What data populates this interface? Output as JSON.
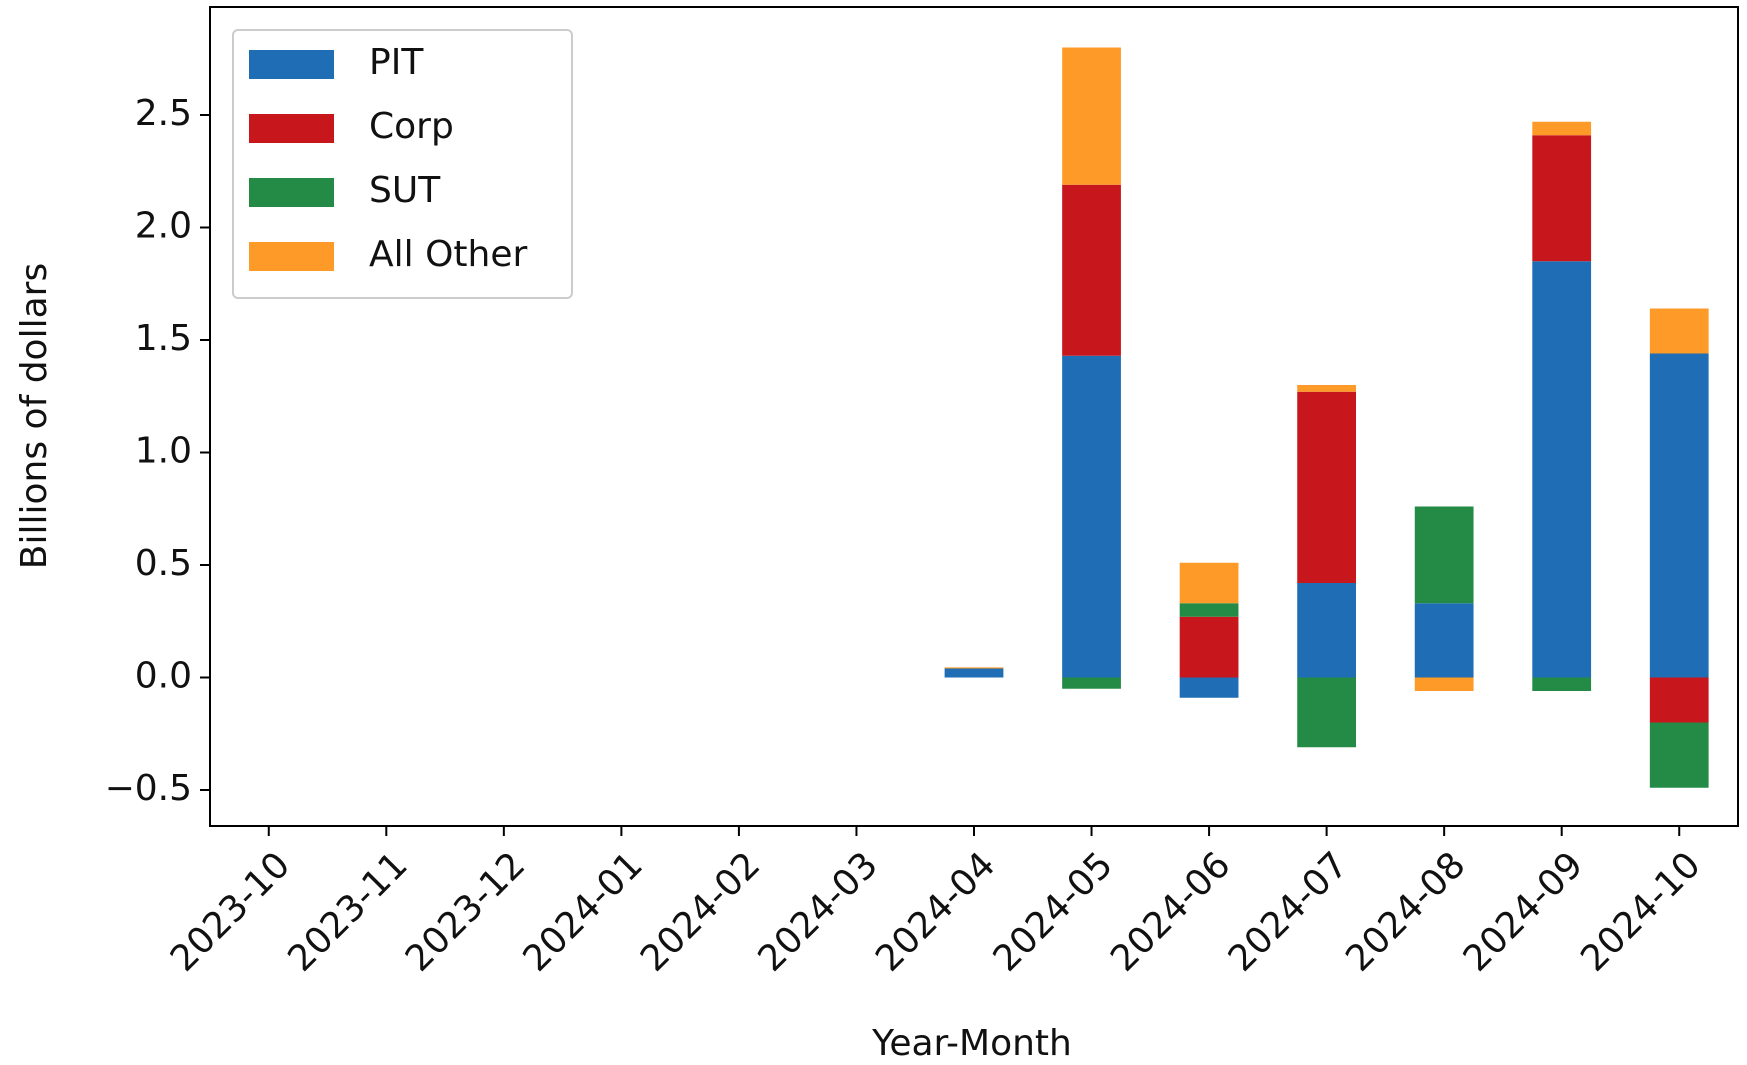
{
  "chart_data": {
    "type": "bar",
    "stacked": true,
    "xlabel": "Year-Month",
    "ylabel": "Billions of dollars",
    "categories": [
      "2023-10",
      "2023-11",
      "2023-12",
      "2024-01",
      "2024-02",
      "2024-03",
      "2024-04",
      "2024-05",
      "2024-06",
      "2024-07",
      "2024-08",
      "2024-09",
      "2024-10"
    ],
    "series": [
      {
        "name": "PIT",
        "color": "#1f6db4",
        "values": [
          0,
          0,
          0,
          0,
          0,
          0,
          0.04,
          1.43,
          -0.09,
          0.42,
          0.33,
          1.85,
          1.44
        ]
      },
      {
        "name": "Corp",
        "color": "#c8161d",
        "values": [
          0,
          0,
          0,
          0,
          0,
          0,
          0,
          0.76,
          0.27,
          0.85,
          0,
          0.56,
          -0.2
        ]
      },
      {
        "name": "SUT",
        "color": "#238b45",
        "values": [
          0,
          0,
          0,
          0,
          0,
          0,
          0,
          -0.05,
          0.06,
          -0.31,
          0.43,
          -0.06,
          -0.29
        ]
      },
      {
        "name": "All Other",
        "color": "#fd9a28",
        "values": [
          0,
          0,
          0,
          0,
          0,
          0,
          0.005,
          0.61,
          0.18,
          0.03,
          -0.06,
          0.06,
          0.2
        ]
      }
    ],
    "ylim": [
      -0.66,
      2.98
    ],
    "yticks": [
      {
        "value": -0.5,
        "label": "−0.5"
      },
      {
        "value": 0,
        "label": "0.0"
      },
      0.5,
      {
        "value": 1,
        "label": "1.0"
      },
      1.5,
      {
        "value": 2,
        "label": "2.0"
      },
      2.5
    ],
    "legend": "upper left",
    "grid": false
  }
}
